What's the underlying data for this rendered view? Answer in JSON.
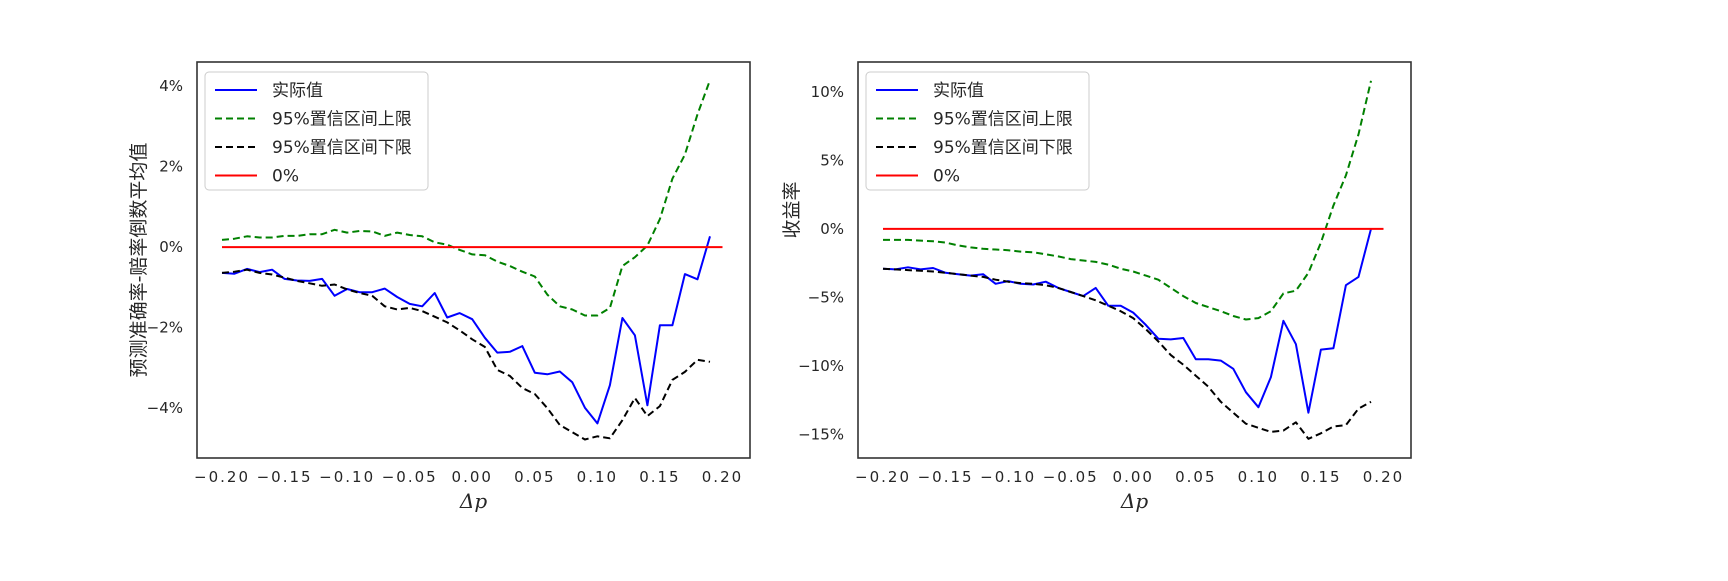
{
  "chart_data": [
    {
      "type": "line",
      "xlabel": "Δp",
      "ylabel": "预测准确率-赔率倒数平均值",
      "xlim": [
        -0.22,
        0.222
      ],
      "ylim": [
        -5.24,
        4.6
      ],
      "xticks": [
        "−0.20",
        "−0.15",
        "−0.10",
        "−0.05",
        "0.00",
        "0.05",
        "0.10",
        "0.15",
        "0.20"
      ],
      "xtick_values": [
        -0.2,
        -0.15,
        -0.1,
        -0.05,
        0,
        0.05,
        0.1,
        0.15,
        0.2
      ],
      "yticks": [
        "−4%",
        "−2%",
        "0%",
        "2%",
        "4%"
      ],
      "ytick_values": [
        -4,
        -2,
        0,
        2,
        4
      ],
      "grid": false,
      "legend_position": "top-left",
      "x_start": -0.2,
      "x_step": 0.01,
      "series": [
        {
          "name": "实际值",
          "color": "#0000ff",
          "style": "solid",
          "values": [
            -0.64,
            -0.66,
            -0.54,
            -0.62,
            -0.56,
            -0.79,
            -0.83,
            -0.84,
            -0.79,
            -1.21,
            -1.04,
            -1.12,
            -1.12,
            -1.03,
            -1.24,
            -1.41,
            -1.47,
            -1.14,
            -1.75,
            -1.64,
            -1.79,
            -2.25,
            -2.62,
            -2.6,
            -2.46,
            -3.12,
            -3.16,
            -3.09,
            -3.36,
            -3.99,
            -4.38,
            -3.43,
            -1.76,
            -2.19,
            -3.93,
            -1.94,
            -1.94,
            -0.67,
            -0.8,
            0.27
          ]
        },
        {
          "name": "95%置信区间上限",
          "color": "#008000",
          "style": "dashed",
          "values": [
            0.18,
            0.21,
            0.27,
            0.24,
            0.24,
            0.28,
            0.28,
            0.32,
            0.32,
            0.43,
            0.36,
            0.4,
            0.39,
            0.28,
            0.36,
            0.3,
            0.27,
            0.12,
            0.06,
            -0.07,
            -0.18,
            -0.2,
            -0.36,
            -0.47,
            -0.61,
            -0.73,
            -1.18,
            -1.47,
            -1.55,
            -1.7,
            -1.7,
            -1.51,
            -0.47,
            -0.25,
            0.04,
            0.7,
            1.7,
            2.3,
            3.3,
            4.15
          ]
        },
        {
          "name": "95%置信区间下限",
          "color": "#000000",
          "style": "dashed",
          "values": [
            -0.64,
            -0.61,
            -0.56,
            -0.64,
            -0.68,
            -0.76,
            -0.84,
            -0.9,
            -0.96,
            -0.93,
            -1.05,
            -1.14,
            -1.21,
            -1.47,
            -1.55,
            -1.51,
            -1.59,
            -1.73,
            -1.87,
            -2.07,
            -2.29,
            -2.48,
            -3.05,
            -3.2,
            -3.5,
            -3.65,
            -4.0,
            -4.42,
            -4.6,
            -4.78,
            -4.7,
            -4.75,
            -4.3,
            -3.75,
            -4.2,
            -3.95,
            -3.3,
            -3.1,
            -2.8,
            -2.85
          ]
        },
        {
          "name": "0%",
          "color": "#ff0000",
          "style": "solid",
          "x": [
            -0.2,
            0.2
          ],
          "values": [
            0,
            0
          ]
        }
      ]
    },
    {
      "type": "line",
      "xlabel": "Δp",
      "ylabel": "收益率",
      "xlim": [
        -0.22,
        0.222
      ],
      "ylim": [
        -16.7,
        12.17
      ],
      "xticks": [
        "−0.20",
        "−0.15",
        "−0.10",
        "−0.05",
        "0.00",
        "0.05",
        "0.10",
        "0.15",
        "0.20"
      ],
      "xtick_values": [
        -0.2,
        -0.15,
        -0.1,
        -0.05,
        0,
        0.05,
        0.1,
        0.15,
        0.2
      ],
      "yticks": [
        "−15%",
        "−10%",
        "−5%",
        "0%",
        "5%",
        "10%"
      ],
      "ytick_values": [
        -15,
        -10,
        -5,
        0,
        5,
        10
      ],
      "grid": false,
      "legend_position": "top-left",
      "x_start": -0.2,
      "x_step": 0.01,
      "series": [
        {
          "name": "实际值",
          "color": "#0000ff",
          "style": "solid",
          "values": [
            -2.9,
            -2.95,
            -2.8,
            -2.95,
            -2.85,
            -3.2,
            -3.3,
            -3.4,
            -3.3,
            -4.0,
            -3.8,
            -4.0,
            -4.05,
            -3.85,
            -4.3,
            -4.6,
            -4.9,
            -4.3,
            -5.6,
            -5.6,
            -6.1,
            -7.0,
            -8.0,
            -8.05,
            -7.95,
            -9.5,
            -9.5,
            -9.6,
            -10.2,
            -11.9,
            -13.0,
            -10.8,
            -6.7,
            -8.4,
            -13.4,
            -8.8,
            -8.7,
            -4.1,
            -3.5,
            0.0
          ]
        },
        {
          "name": "95%置信区间上限",
          "color": "#008000",
          "style": "dashed",
          "values": [
            -0.8,
            -0.8,
            -0.8,
            -0.85,
            -0.9,
            -1.0,
            -1.2,
            -1.35,
            -1.45,
            -1.5,
            -1.55,
            -1.65,
            -1.7,
            -1.85,
            -2.0,
            -2.2,
            -2.3,
            -2.4,
            -2.6,
            -2.9,
            -3.1,
            -3.4,
            -3.7,
            -4.3,
            -4.9,
            -5.4,
            -5.7,
            -6.0,
            -6.35,
            -6.6,
            -6.5,
            -6.0,
            -4.7,
            -4.5,
            -3.2,
            -1.0,
            1.7,
            3.9,
            6.9,
            10.8
          ]
        },
        {
          "name": "95%置信区间下限",
          "color": "#000000",
          "style": "dashed",
          "values": [
            -2.9,
            -2.95,
            -3.0,
            -3.05,
            -3.1,
            -3.2,
            -3.3,
            -3.4,
            -3.5,
            -3.7,
            -3.85,
            -3.95,
            -4.0,
            -4.1,
            -4.3,
            -4.6,
            -4.9,
            -5.2,
            -5.6,
            -6.0,
            -6.5,
            -7.3,
            -8.2,
            -9.2,
            -9.9,
            -10.7,
            -11.5,
            -12.6,
            -13.4,
            -14.2,
            -14.5,
            -14.8,
            -14.7,
            -14.1,
            -15.3,
            -14.9,
            -14.4,
            -14.3,
            -13.1,
            -12.6
          ]
        },
        {
          "name": "0%",
          "color": "#ff0000",
          "style": "solid",
          "x": [
            -0.2,
            0.2
          ],
          "values": [
            0,
            0
          ]
        }
      ]
    }
  ]
}
